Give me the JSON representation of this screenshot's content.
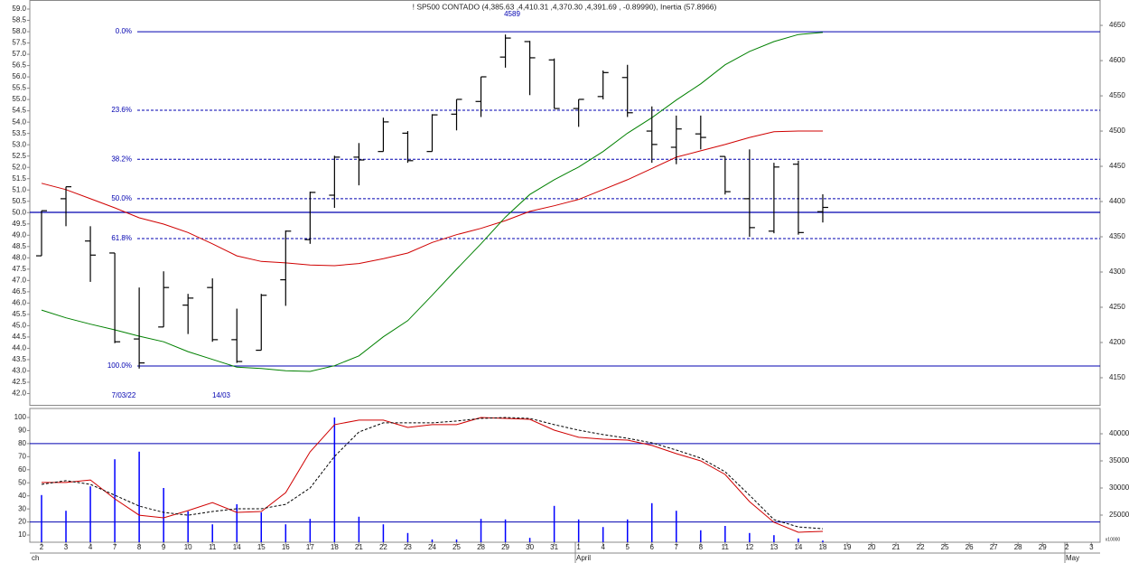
{
  "chart_data": [
    {
      "type": "ohlc",
      "title": "! SP500 CONTADO (4,385.63 ,4,410.31 ,4,370.30 ,4,391.69 , -0.89990), Inertia (57.8966)",
      "color": "#000000",
      "ylim": [
        41.5,
        59.4
      ],
      "yticks": [
        {
          "value": 42,
          "label": "42.0"
        },
        42.5,
        {
          "value": 43,
          "label": "43.0"
        },
        43.5,
        {
          "value": 44,
          "label": "44.0"
        },
        44.5,
        {
          "value": 45,
          "label": "45.0"
        },
        45.5,
        {
          "value": 46,
          "label": "46.0"
        },
        46.5,
        {
          "value": 47,
          "label": "47.0"
        },
        47.5,
        {
          "value": 48,
          "label": "48.0"
        },
        48.5,
        {
          "value": 49,
          "label": "49.0"
        },
        49.5,
        {
          "value": 50,
          "label": "50.0"
        },
        50.5,
        {
          "value": 51,
          "label": "51.0"
        },
        51.5,
        {
          "value": 52,
          "label": "52.0"
        },
        52.5,
        {
          "value": 53,
          "label": "53.0"
        },
        53.5,
        {
          "value": 54,
          "label": "54.0"
        },
        54.5,
        {
          "value": 55,
          "label": "55.0"
        },
        55.5,
        {
          "value": 56,
          "label": "56.0"
        },
        56.5,
        {
          "value": 57,
          "label": "57.0"
        },
        57.5,
        {
          "value": 58,
          "label": "58.0"
        },
        58.5,
        {
          "value": 59,
          "label": "59.0"
        }
      ],
      "y2lim": [
        4111.5,
        4686
      ],
      "y2ticks": [
        4150,
        4200,
        4250,
        4300,
        4350,
        4400,
        4450,
        4500,
        4550,
        4600,
        4650
      ],
      "open": [
        4323,
        4404,
        4344,
        4327,
        4205,
        4222,
        4253,
        4278,
        4204,
        4189,
        4289,
        4346,
        4409,
        4463,
        4471,
        4497,
        4471,
        4524,
        4542,
        4605,
        4627,
        4601,
        4532,
        4549,
        4576,
        4500,
        4477,
        4496,
        4464,
        4404,
        4358,
        4453,
        4385.63,
        null,
        null,
        null,
        null,
        null,
        null,
        null,
        null,
        null,
        null,
        null
      ],
      "high": [
        4387,
        4421,
        4365,
        4327,
        4278,
        4301,
        4269,
        4291,
        4248,
        4269,
        4359,
        4414,
        4465,
        4483,
        4519,
        4500,
        4524,
        4545,
        4577,
        4637,
        4628,
        4603,
        4545,
        4586,
        4594,
        4535,
        4522,
        4522,
        4464,
        4474,
        4455,
        4458,
        4410.31,
        null,
        null,
        null,
        null,
        null,
        null,
        null,
        null,
        null,
        null,
        null
      ],
      "low": [
        4323,
        4365,
        4286,
        4199,
        4163,
        4222,
        4212,
        4201,
        4171,
        4189,
        4252,
        4340,
        4391,
        4423,
        4471,
        4455,
        4471,
        4501,
        4520,
        4590,
        4551,
        4532,
        4506,
        4545,
        4520,
        4455,
        4453,
        4474,
        4410,
        4350,
        4355,
        4353,
        4370.3,
        null,
        null,
        null,
        null,
        null,
        null,
        null,
        null,
        null,
        null,
        null
      ],
      "close": [
        4387,
        4421,
        4324,
        4201,
        4171,
        4278,
        4263,
        4204,
        4173,
        4267,
        4358,
        4413,
        4463,
        4459,
        4513,
        4458,
        4523,
        4545,
        4577,
        4632,
        4604,
        4532,
        4545,
        4583,
        4526,
        4481,
        4503,
        4491,
        4414,
        4363,
        4449,
        4356,
        4391.69,
        null,
        null,
        null,
        null,
        null,
        null,
        null,
        null,
        null,
        null,
        null
      ],
      "lines": [
        {
          "color": "#d00000",
          "values": [
            4426,
            4417,
            4404,
            4391,
            4377,
            4368,
            4356,
            4340,
            4323,
            4315,
            4313,
            4310,
            4309,
            4312,
            4319,
            4327,
            4342,
            4353,
            4362,
            4373,
            4386,
            4394,
            4403,
            4417,
            4431,
            4447,
            4463,
            4472,
            4481,
            4491,
            4499,
            4500,
            4500,
            null,
            null,
            null,
            null,
            null,
            null,
            null,
            null,
            null,
            null,
            null
          ]
        },
        {
          "color": "#008000",
          "values": [
            4246,
            4235,
            4226,
            4218,
            4209,
            4201,
            4187,
            4176,
            4165,
            4163,
            4160,
            4159,
            4167,
            4181,
            4208,
            4231,
            4267,
            4304,
            4340,
            4378,
            4410,
            4431,
            4449,
            4471,
            4497,
            4519,
            4544,
            4567,
            4594,
            4613,
            4627,
            4637,
            4640,
            null,
            null,
            null,
            null,
            null,
            null,
            null,
            null,
            null,
            null,
            null
          ]
        }
      ],
      "level_color": "#0000b0",
      "levels": [
        {
          "label": "0.0%",
          "price": 4641,
          "style": "solid"
        },
        {
          "label": "23.6%",
          "price": 4529.5,
          "style": "dashed"
        },
        {
          "label": "38.2%",
          "price": 4460,
          "style": "dashed"
        },
        {
          "label": "50.0%",
          "price": 4404,
          "style": "dashed"
        },
        {
          "label": "61.8%",
          "price": 4347.5,
          "style": "dashed"
        },
        {
          "label": "100.0%",
          "price": 4166.7,
          "style": "solid"
        }
      ],
      "hline": 4384.6,
      "annotations": [
        {
          "text": "4589"
        },
        {
          "text": "7/03/22"
        },
        {
          "text": "14/03"
        }
      ]
    },
    {
      "type": "oscillator",
      "categories": [
        "2",
        "3",
        "4",
        "7",
        "8",
        "9",
        "10",
        "11",
        "14",
        "15",
        "16",
        "17",
        "18",
        "21",
        "22",
        "23",
        "24",
        "25",
        "28",
        "29",
        "30",
        "31",
        "1",
        "4",
        "5",
        "6",
        "7",
        "8",
        "11",
        "12",
        "13",
        "14",
        "18",
        "19",
        "20",
        "21",
        "22",
        "25",
        "26",
        "27",
        "28",
        "29",
        "2",
        "3"
      ],
      "months": [
        "ch",
        "April",
        "May"
      ],
      "ylim": [
        4.5,
        106.9
      ],
      "yticks": [
        10,
        20,
        30,
        40,
        50,
        60,
        70,
        80,
        90,
        100
      ],
      "y2lim": [
        20000,
        44667
      ],
      "y2ticks": [
        25000,
        30000,
        35000,
        40000
      ],
      "volume_unit": "x10000",
      "hlines": [
        80,
        20
      ],
      "hline_color": "#0000b0",
      "lines": [
        {
          "color": "#d00000",
          "style": "solid",
          "values": [
            50.2,
            50.2,
            52.2,
            37.7,
            25.2,
            23.2,
            28.7,
            34.9,
            27.3,
            28,
            42.5,
            73.7,
            94.5,
            98,
            98,
            92.4,
            94.5,
            94.5,
            100,
            99.3,
            98.6,
            90.3,
            84.8,
            83.4,
            82.7,
            78.6,
            72.3,
            66.8,
            56.4,
            35.6,
            19.7,
            12.1,
            12.8,
            null,
            null,
            null,
            null,
            null,
            null,
            null,
            null,
            null,
            null,
            null
          ]
        },
        {
          "color": "#000000",
          "style": "dashed",
          "values": [
            48.8,
            51.6,
            48.8,
            40.5,
            32.2,
            27.3,
            25.2,
            28,
            30.1,
            30.1,
            33.5,
            46,
            70.2,
            88.9,
            95.9,
            95.9,
            95.9,
            97.3,
            99.3,
            100,
            99.3,
            94.5,
            90.3,
            86.9,
            84.1,
            80.6,
            75.1,
            68.9,
            58.5,
            40.5,
            21.8,
            16.2,
            14.8,
            null,
            null,
            null,
            null,
            null,
            null,
            null,
            null,
            null,
            null,
            null
          ]
        }
      ],
      "volume": {
        "color": "#0000ff",
        "values": [
          28700,
          25800,
          30300,
          35300,
          36700,
          30000,
          25700,
          23300,
          27000,
          25500,
          23300,
          24300,
          43000,
          24700,
          23300,
          21700,
          20500,
          20500,
          24300,
          24200,
          20800,
          26700,
          24200,
          22800,
          24200,
          27200,
          25800,
          22200,
          23000,
          21700,
          21300,
          20700,
          20300,
          null,
          null,
          null,
          null,
          null,
          null,
          null,
          null,
          null,
          null,
          null
        ]
      }
    }
  ]
}
